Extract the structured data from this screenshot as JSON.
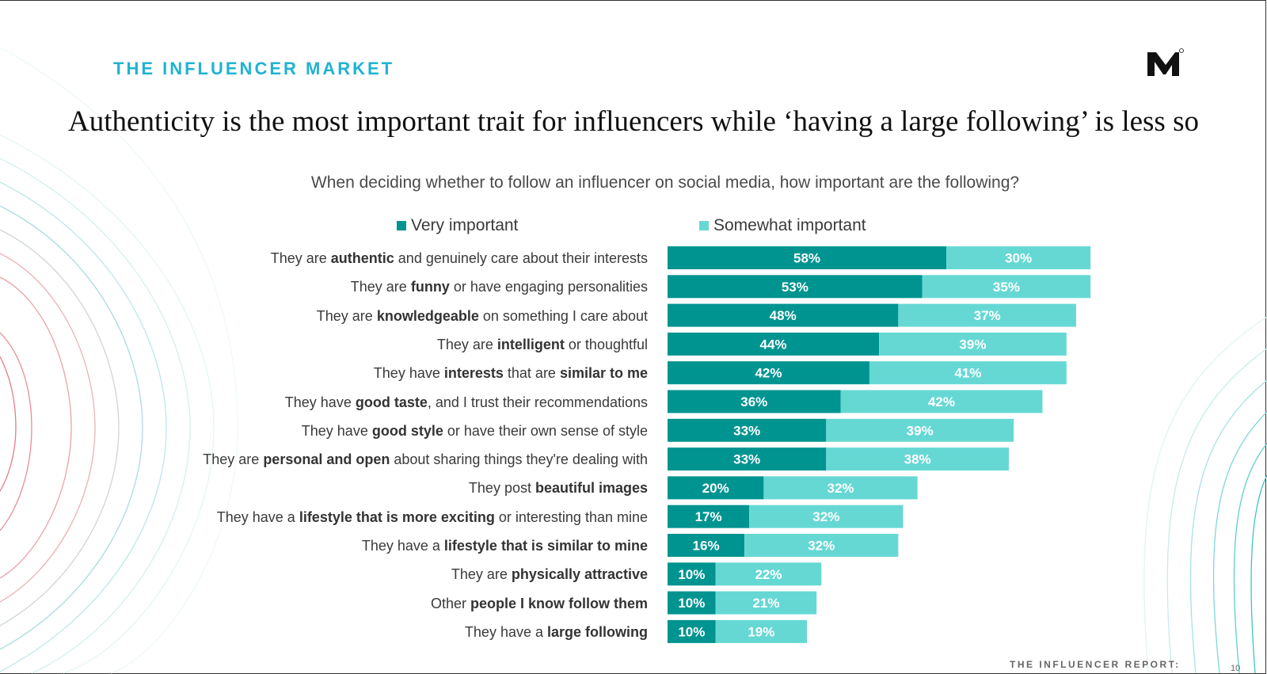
{
  "section_label": "THE INFLUENCER MARKET",
  "headline": "Authenticity is the most important trait for influencers while ‘having a large following’ is less so",
  "footer": {
    "report": "THE INFLUENCER REPORT:",
    "page": "10"
  },
  "colors": {
    "very": "#009491",
    "somewhat": "#66d8d4",
    "accent": "#1fb3d2"
  },
  "chart_data": {
    "type": "bar",
    "orientation": "horizontal-stacked",
    "title": "When deciding whether to follow an influencer on social media, how important are the following?",
    "legend": [
      "Very important",
      "Somewhat important"
    ],
    "unit": "%",
    "categories": [
      [
        {
          "t": "They are "
        },
        {
          "t": "authentic",
          "b": true
        },
        {
          "t": " and genuinely care about their interests"
        }
      ],
      [
        {
          "t": "They are "
        },
        {
          "t": "funny",
          "b": true
        },
        {
          "t": " or have engaging personalities"
        }
      ],
      [
        {
          "t": "They are "
        },
        {
          "t": "knowledgeable",
          "b": true
        },
        {
          "t": " on something I care about"
        }
      ],
      [
        {
          "t": "They are "
        },
        {
          "t": "intelligent",
          "b": true
        },
        {
          "t": " or thoughtful"
        }
      ],
      [
        {
          "t": "They have "
        },
        {
          "t": "interests",
          "b": true
        },
        {
          "t": " that are "
        },
        {
          "t": "similar to me",
          "b": true
        }
      ],
      [
        {
          "t": "They have "
        },
        {
          "t": "good taste",
          "b": true
        },
        {
          "t": ", and I trust their recommendations"
        }
      ],
      [
        {
          "t": "They have "
        },
        {
          "t": "good style",
          "b": true
        },
        {
          "t": " or have their own sense of style"
        }
      ],
      [
        {
          "t": "They are "
        },
        {
          "t": "personal and open",
          "b": true
        },
        {
          "t": " about sharing things they're dealing with"
        }
      ],
      [
        {
          "t": "They post "
        },
        {
          "t": "beautiful images",
          "b": true
        }
      ],
      [
        {
          "t": "They have a "
        },
        {
          "t": "lifestyle that is more exciting",
          "b": true
        },
        {
          "t": " or interesting than mine"
        }
      ],
      [
        {
          "t": "They have a "
        },
        {
          "t": "lifestyle that is similar to mine",
          "b": true
        }
      ],
      [
        {
          "t": "They are "
        },
        {
          "t": "physically attractive",
          "b": true
        }
      ],
      [
        {
          "t": "Other "
        },
        {
          "t": "people I know follow them",
          "b": true
        }
      ],
      [
        {
          "t": "They have a "
        },
        {
          "t": "large following",
          "b": true
        }
      ]
    ],
    "series": [
      {
        "name": "Very important",
        "values": [
          58,
          53,
          48,
          44,
          42,
          36,
          33,
          33,
          20,
          17,
          16,
          10,
          10,
          10
        ]
      },
      {
        "name": "Somewhat important",
        "values": [
          30,
          35,
          37,
          39,
          41,
          42,
          39,
          38,
          32,
          32,
          32,
          22,
          21,
          19
        ]
      }
    ],
    "xlim": [
      0,
      100
    ]
  }
}
